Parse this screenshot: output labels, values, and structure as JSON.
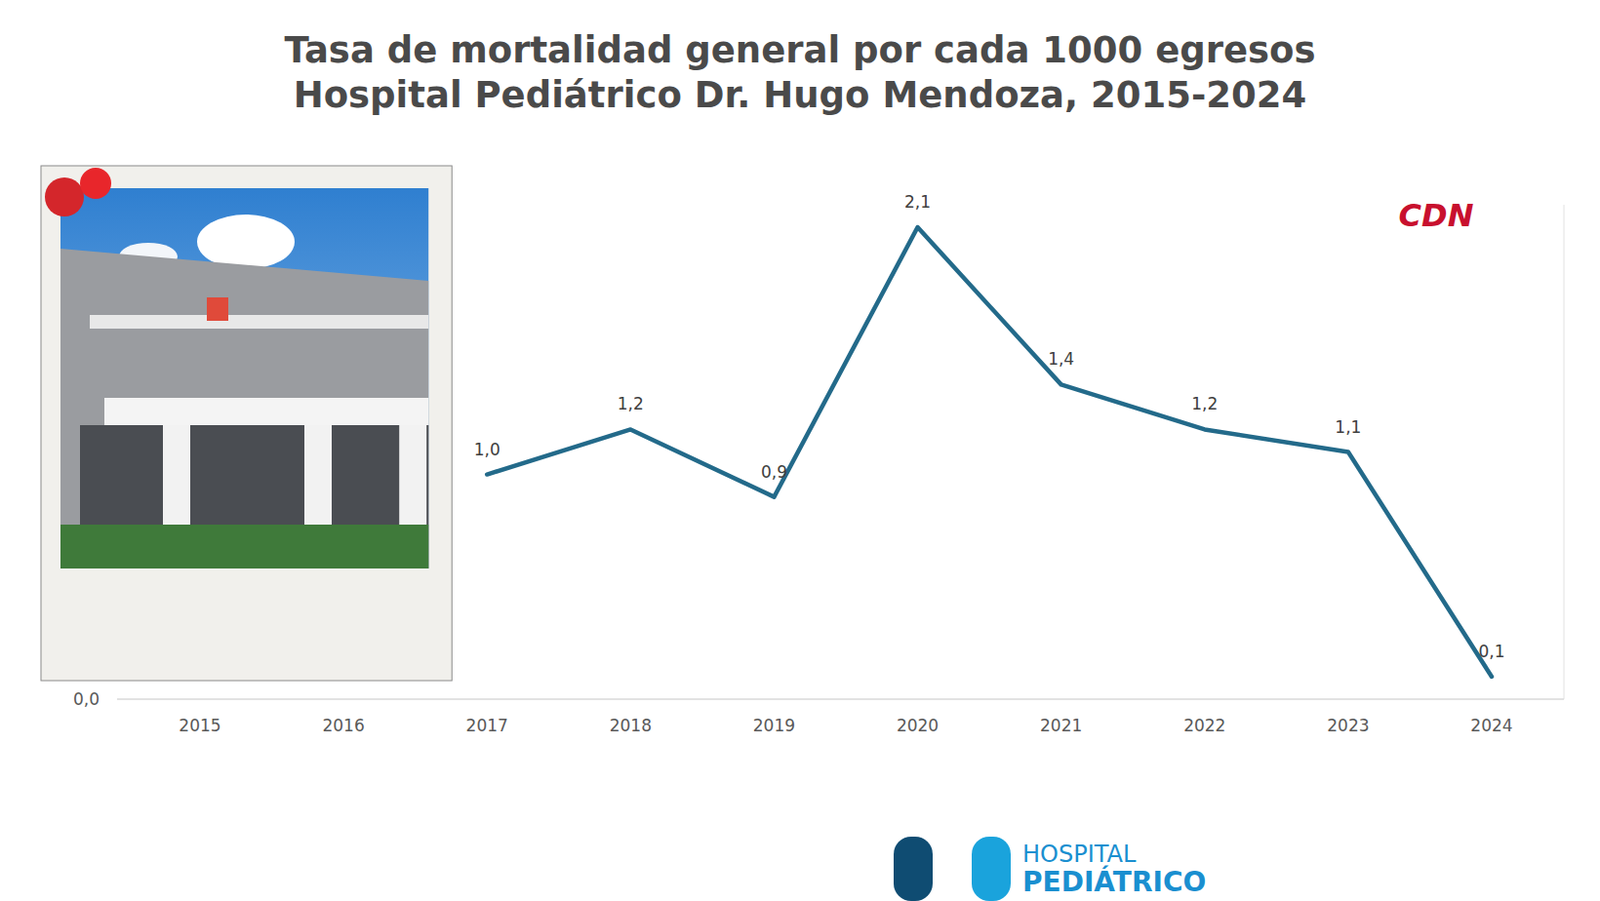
{
  "chart_data": {
    "type": "line",
    "title": "Tasa de mortalidad general por cada 1000 egresos",
    "subtitle": "Hospital Pediátrico Dr. Hugo Mendoza, 2015-2024",
    "categories": [
      "2015",
      "2016",
      "2017",
      "2018",
      "2019",
      "2020",
      "2021",
      "2022",
      "2023",
      "2024"
    ],
    "values": [
      null,
      null,
      1.0,
      1.2,
      0.9,
      2.1,
      1.4,
      1.2,
      1.1,
      0.1
    ],
    "value_labels": [
      null,
      null,
      "1,0",
      "1,2",
      "0,9",
      "2,1",
      "1,4",
      "1,2",
      "1,1",
      "0,1"
    ],
    "color": "#236a8a",
    "ylim": [
      0,
      2.2
    ],
    "yticks": [
      {
        "value": 0,
        "label": "0,0"
      }
    ],
    "grid": false,
    "data_labels": true,
    "tick_labels": "x",
    "annotations": [
      "CDN",
      "HOSPITAL",
      "PEDIÁTRICO"
    ]
  }
}
